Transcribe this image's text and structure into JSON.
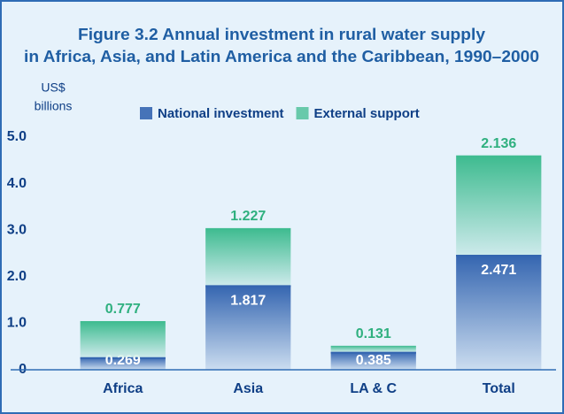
{
  "chart_data": {
    "type": "stacked_bar",
    "title": [
      "Figure 3.2   Annual investment in rural water supply",
      "in Africa, Asia, and Latin America and the Caribbean, 1990–2000"
    ],
    "y_label": [
      "US$",
      "billions"
    ],
    "categories": [
      "Africa",
      "Asia",
      "LA & C",
      "Total"
    ],
    "series": [
      {
        "name": "National investment",
        "color": "#3465b0",
        "values": [
          0.269,
          1.817,
          0.385,
          2.471
        ]
      },
      {
        "name": "External support",
        "color": "#3dbb8f",
        "values": [
          0.777,
          1.227,
          0.131,
          2.136
        ]
      }
    ],
    "ylim": [
      0,
      5
    ],
    "yticks": [
      0,
      {
        "value": 1,
        "label": "1.0"
      },
      {
        "value": 2,
        "label": "2.0"
      },
      {
        "value": 3,
        "label": "3.0"
      },
      {
        "value": 4,
        "label": "4.0"
      },
      {
        "value": 5,
        "label": "5.0"
      }
    ]
  }
}
